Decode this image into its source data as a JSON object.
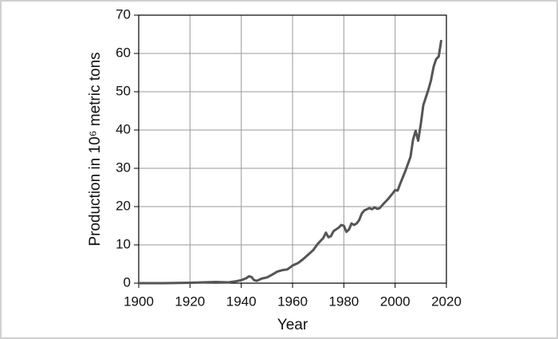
{
  "chart_data": {
    "type": "line",
    "xlabel": "Year",
    "ylabel": "Production in 10⁶ metric tons",
    "x": [
      1900,
      1910,
      1920,
      1925,
      1930,
      1935,
      1938,
      1940,
      1942,
      1943,
      1944,
      1945,
      1946,
      1948,
      1950,
      1952,
      1954,
      1956,
      1958,
      1960,
      1962,
      1964,
      1966,
      1968,
      1970,
      1972,
      1973,
      1974,
      1975,
      1976,
      1978,
      1979,
      1980,
      1981,
      1982,
      1983,
      1984,
      1985,
      1986,
      1987,
      1988,
      1990,
      1991,
      1992,
      1993,
      1994,
      1995,
      1997,
      1999,
      2000,
      2001,
      2002,
      2004,
      2006,
      2007,
      2008,
      2009,
      2010,
      2011,
      2013,
      2014,
      2015,
      2016,
      2017,
      2018
    ],
    "series": [
      {
        "color": "#555555",
        "values": [
          0,
          0,
          0.1,
          0.2,
          0.3,
          0.2,
          0.5,
          0.8,
          1.3,
          1.8,
          1.6,
          0.8,
          0.6,
          1.2,
          1.5,
          2.2,
          3.0,
          3.4,
          3.6,
          4.6,
          5.2,
          6.2,
          7.4,
          8.6,
          10.4,
          11.8,
          13.2,
          12.0,
          12.3,
          13.6,
          14.5,
          15.2,
          15.0,
          13.4,
          14.0,
          15.6,
          15.2,
          15.6,
          16.5,
          18.2,
          19.0,
          19.6,
          19.3,
          19.8,
          19.4,
          19.6,
          20.4,
          21.8,
          23.4,
          24.3,
          24.2,
          26,
          29.3,
          33,
          37.5,
          39.8,
          37.2,
          41.5,
          46.5,
          50.6,
          53,
          56.5,
          58.5,
          59.2,
          63.5
        ]
      }
    ],
    "xlim": [
      1900,
      2020
    ],
    "xticks": [
      1900,
      1920,
      1940,
      1960,
      1980,
      2000,
      2020
    ],
    "ylim": [
      0,
      70
    ],
    "yticks": [
      0,
      10,
      20,
      30,
      40,
      50,
      60,
      70
    ],
    "grid": true
  }
}
